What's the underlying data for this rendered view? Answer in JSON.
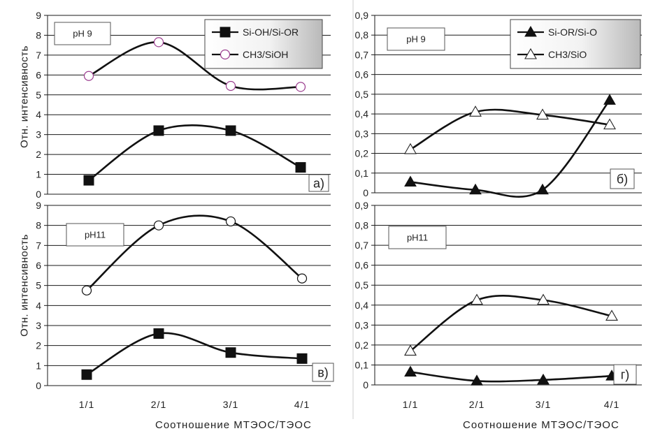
{
  "axis_titles": {
    "y_top": "Отн. интенсивность",
    "y_bottom": "Отн. интенсивность",
    "x_left": "Соотношение МТЭОС/ТЭОС",
    "x_right": "Соотношение МТЭОС/ТЭОС"
  },
  "chart_data": [
    {
      "id": "a",
      "type": "line",
      "panel_label": "а)",
      "condition_label": "pH 9",
      "categories": [
        "1/1",
        "2/1",
        "3/1",
        "4/1"
      ],
      "ylim": [
        0,
        9
      ],
      "yticks": [
        "0",
        "1",
        "2",
        "3",
        "4",
        "5",
        "6",
        "7",
        "8",
        "9"
      ],
      "show_xticks": false,
      "legend": "top-right",
      "series": [
        {
          "name": "Si-OH/Si-OR",
          "marker": "square-filled",
          "values": [
            0.7,
            3.2,
            3.2,
            1.35
          ]
        },
        {
          "name": "CH3/SiOH",
          "marker": "circle-open",
          "marker_color": "#9b3d8f",
          "values": [
            5.95,
            7.65,
            5.45,
            5.4
          ]
        }
      ]
    },
    {
      "id": "b",
      "type": "line",
      "panel_label": "б)",
      "condition_label": "pH 9",
      "categories": [
        "1/1",
        "2/1",
        "3/1",
        "4/1"
      ],
      "ylim": [
        0,
        0.9
      ],
      "yticks": [
        "0",
        "0,1",
        "0,2",
        "0,3",
        "0,4",
        "0,5",
        "0,6",
        "0,7",
        "0,8",
        "0,9"
      ],
      "show_xticks": false,
      "legend": "top-right",
      "series": [
        {
          "name": "Si-OR/Si-O",
          "marker": "triangle-filled",
          "values": [
            0.055,
            0.015,
            0.015,
            0.47
          ]
        },
        {
          "name": "CH3/SiO",
          "marker": "triangle-open",
          "values": [
            0.22,
            0.41,
            0.395,
            0.345
          ]
        }
      ]
    },
    {
      "id": "c",
      "type": "line",
      "panel_label": "в)",
      "condition_label": "pH11",
      "categories": [
        "1/1",
        "2/1",
        "3/1",
        "4/1"
      ],
      "ylim": [
        0,
        9
      ],
      "yticks": [
        "0",
        "1",
        "2",
        "3",
        "4",
        "5",
        "6",
        "7",
        "8",
        "9"
      ],
      "show_xticks": true,
      "legend": "none",
      "series": [
        {
          "marker": "square-filled",
          "values": [
            0.55,
            2.6,
            1.65,
            1.35
          ]
        },
        {
          "marker": "circle-open",
          "values": [
            4.75,
            8.0,
            8.2,
            5.35
          ]
        }
      ]
    },
    {
      "id": "d",
      "type": "line",
      "panel_label": "г)",
      "condition_label": "pH11",
      "categories": [
        "1/1",
        "2/1",
        "3/1",
        "4/1"
      ],
      "ylim": [
        0,
        0.9
      ],
      "yticks": [
        "0",
        "0,1",
        "0,2",
        "0,3",
        "0,4",
        "0,5",
        "0,6",
        "0,7",
        "0,8",
        "0,9"
      ],
      "show_xticks": true,
      "legend": "none",
      "series": [
        {
          "marker": "triangle-filled",
          "values": [
            0.065,
            0.02,
            0.025,
            0.045
          ]
        },
        {
          "marker": "triangle-open",
          "values": [
            0.17,
            0.425,
            0.425,
            0.345
          ]
        }
      ]
    }
  ]
}
